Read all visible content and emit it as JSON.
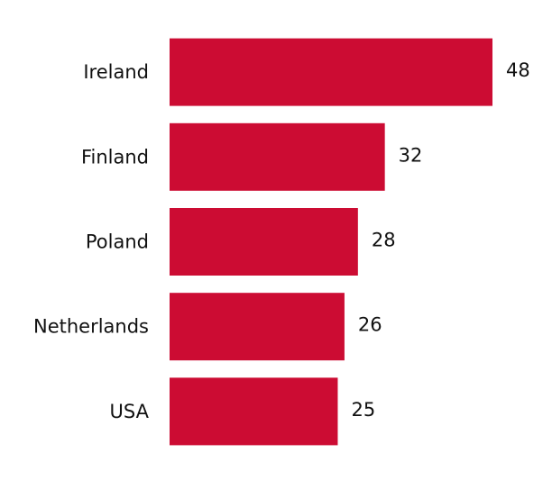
{
  "chart_data": {
    "type": "bar",
    "orientation": "horizontal",
    "categories": [
      "Ireland",
      "Finland",
      "Poland",
      "Netherlands",
      "USA"
    ],
    "values": [
      48,
      32,
      28,
      26,
      25
    ],
    "color": "#cc0c33",
    "grid": false
  }
}
